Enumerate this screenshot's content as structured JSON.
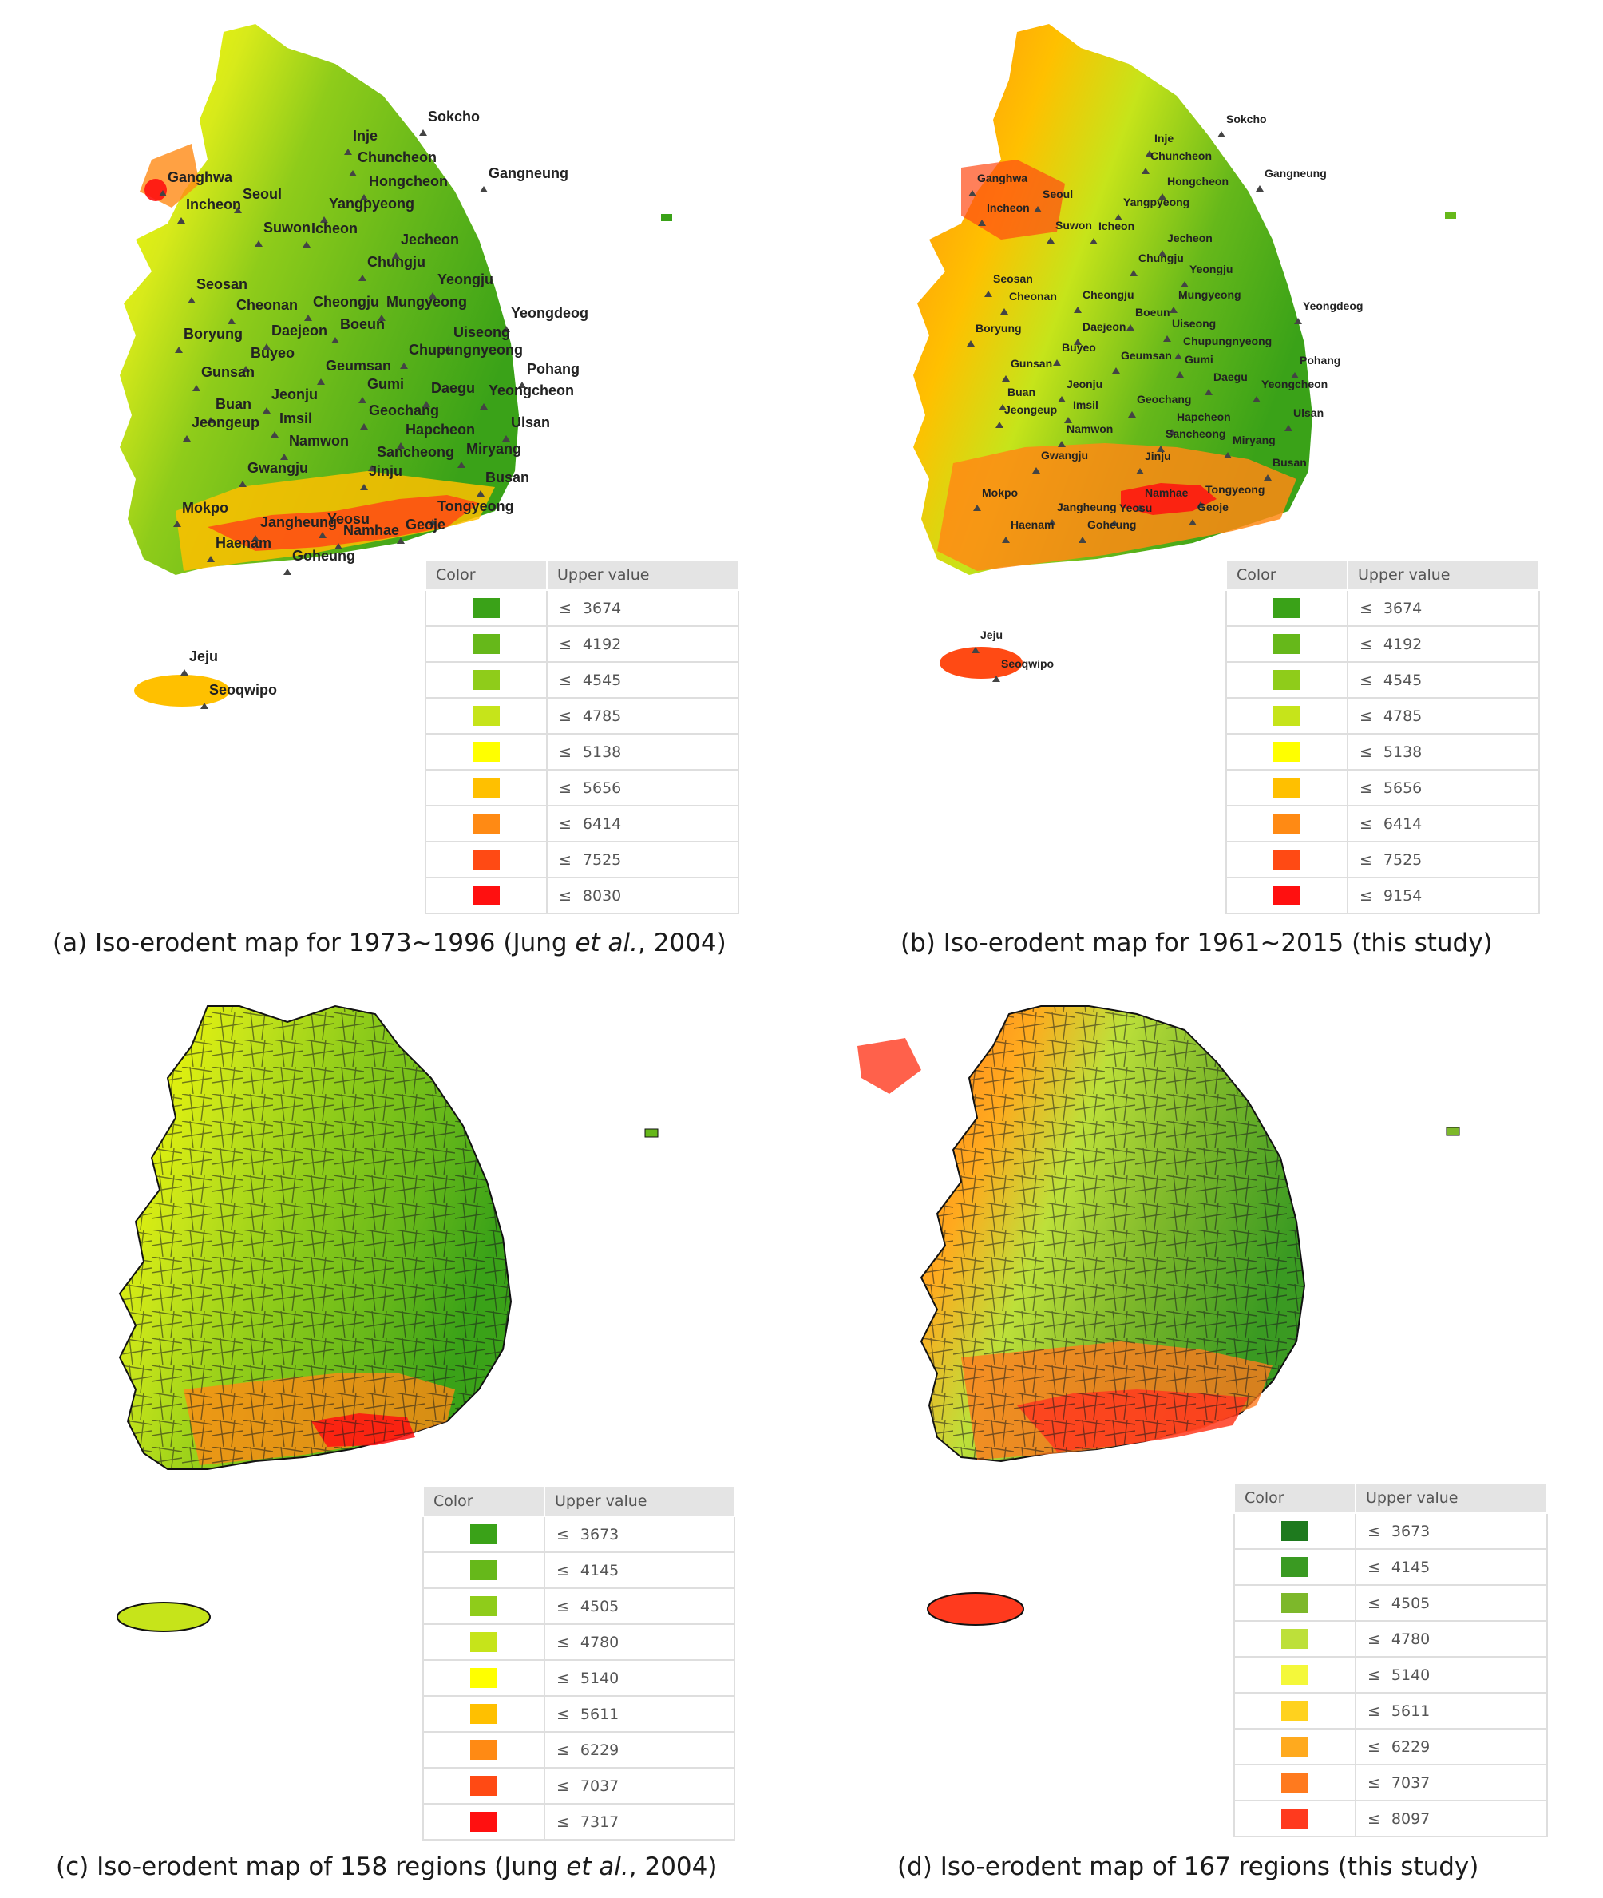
{
  "legend_headers": {
    "color": "Color",
    "upper_value": "Upper value"
  },
  "le_symbol": "≤",
  "panels": [
    {
      "id": "a",
      "caption": {
        "pre": "(a) Iso-erodent map for 1973~1996 (Jung ",
        "italic": "et al.",
        "post": ", 2004)"
      },
      "legend": [
        {
          "color": "#3aa218",
          "value": "3674"
        },
        {
          "color": "#66b81a",
          "value": "4192"
        },
        {
          "color": "#8fcc1a",
          "value": "4545"
        },
        {
          "color": "#c6e41a",
          "value": "4785"
        },
        {
          "color": "#ffff00",
          "value": "5138"
        },
        {
          "color": "#ffc000",
          "value": "5656"
        },
        {
          "color": "#ff8a14",
          "value": "6414"
        },
        {
          "color": "#ff4a14",
          "value": "7525"
        },
        {
          "color": "#ff1010",
          "value": "8030"
        }
      ],
      "cities": [
        "Sokcho",
        "Inje",
        "Chuncheon",
        "Gangneung",
        "Ganghwa",
        "Seoul",
        "Hongcheon",
        "Incheon",
        "Yangpyeong",
        "Suwon",
        "Icheon",
        "Jecheon",
        "Chungju",
        "Seosan",
        "Yeongju",
        "Cheonan",
        "Cheongju",
        "Mungyeong",
        "Yeongdeog",
        "Daejeon",
        "Boeun",
        "Boryung",
        "Uiseong",
        "Buyeo",
        "Geumsan",
        "Chupungnyeong",
        "Pohang",
        "Gunsan",
        "Gumi",
        "Daegu",
        "Yeongcheon",
        "Jeonju",
        "Buan",
        "Imsil",
        "Geochang",
        "Jeongeup",
        "Hapcheon",
        "Ulsan",
        "Namwon",
        "Sancheong",
        "Miryang",
        "Gwangju",
        "Jinju",
        "Busan",
        "Tongyeong",
        "Mokpo",
        "Jangheung",
        "Yeosu",
        "Namhae",
        "Geoje",
        "Haenam",
        "Goheung",
        "Jeju",
        "Seoqwipo"
      ]
    },
    {
      "id": "b",
      "caption": {
        "pre": "(b) Iso-erodent map for 1961~2015 (this study)",
        "italic": "",
        "post": ""
      },
      "legend": [
        {
          "color": "#3aa218",
          "value": "3674"
        },
        {
          "color": "#66b81a",
          "value": "4192"
        },
        {
          "color": "#8fcc1a",
          "value": "4545"
        },
        {
          "color": "#c6e41a",
          "value": "4785"
        },
        {
          "color": "#ffff00",
          "value": "5138"
        },
        {
          "color": "#ffc000",
          "value": "5656"
        },
        {
          "color": "#ff8a14",
          "value": "6414"
        },
        {
          "color": "#ff4a14",
          "value": "7525"
        },
        {
          "color": "#ff1010",
          "value": "9154"
        }
      ],
      "cities": [
        "Sokcho",
        "Inje",
        "Chuncheon",
        "Gangneung",
        "Ganghwa",
        "Seoul",
        "Hongcheon",
        "Incheon",
        "Yangpyeong",
        "Suwon",
        "Icheon",
        "Jecheon",
        "Chungju",
        "Yeongju",
        "Seosan",
        "Cheonan",
        "Cheongju",
        "Mungyeong",
        "Yeongdeog",
        "Boeun",
        "Daejeon",
        "Uiseong",
        "Boryung",
        "Chupungnyeong",
        "Buyeo",
        "Geumsan",
        "Gumi",
        "Pohang",
        "Gunsan",
        "Daegu",
        "Yeongcheon",
        "Jeonju",
        "Buan",
        "Geochang",
        "Jeongeup",
        "Imsil",
        "Hapcheon",
        "Ulsan",
        "Namwon",
        "Sancheong",
        "Miryang",
        "Gwangju",
        "Jinju",
        "Busan",
        "Mokpo",
        "Namhae",
        "Tongyeong",
        "Jangheung",
        "Yeosu",
        "Geoje",
        "Haenam",
        "Goheung",
        "Jeju",
        "Seoqwipo"
      ]
    },
    {
      "id": "c",
      "caption": {
        "pre": "(c) Iso-erodent map of 158 regions (Jung ",
        "italic": "et al.",
        "post": ", 2004)"
      },
      "legend": [
        {
          "color": "#3aa218",
          "value": "3673"
        },
        {
          "color": "#66b81a",
          "value": "4145"
        },
        {
          "color": "#8fcc1a",
          "value": "4505"
        },
        {
          "color": "#c6e41a",
          "value": "4780"
        },
        {
          "color": "#ffff00",
          "value": "5140"
        },
        {
          "color": "#ffc000",
          "value": "5611"
        },
        {
          "color": "#ff8a14",
          "value": "6229"
        },
        {
          "color": "#ff4a14",
          "value": "7037"
        },
        {
          "color": "#ff1010",
          "value": "7317"
        }
      ],
      "cities": []
    },
    {
      "id": "d",
      "caption": {
        "pre": "(d) Iso-erodent map of 167 regions (this study)",
        "italic": "",
        "post": ""
      },
      "legend": [
        {
          "color": "#1e7a1e",
          "value": "3673"
        },
        {
          "color": "#3a9a22",
          "value": "4145"
        },
        {
          "color": "#7db82a",
          "value": "4505"
        },
        {
          "color": "#bde03a",
          "value": "4780"
        },
        {
          "color": "#f4f83a",
          "value": "5140"
        },
        {
          "color": "#ffd21e",
          "value": "5611"
        },
        {
          "color": "#ffaa1e",
          "value": "6229"
        },
        {
          "color": "#ff7a1e",
          "value": "7037"
        },
        {
          "color": "#ff3a1e",
          "value": "8097"
        }
      ],
      "cities": []
    }
  ]
}
